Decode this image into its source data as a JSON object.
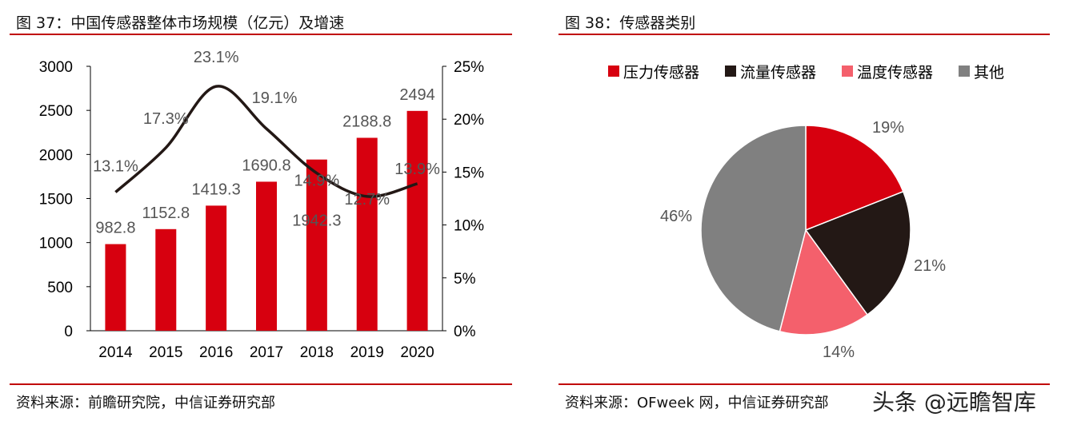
{
  "left": {
    "title": "图 37：中国传感器整体市场规模（亿元）及增速",
    "source": "资料来源：前瞻研究院，中信证券研究部"
  },
  "right": {
    "title": "图 38：传感器类别",
    "source": "资料来源：OFweek 网，中信证券研究部"
  },
  "watermark": "头条 @远瞻智库",
  "chart_data": [
    {
      "type": "bar+line",
      "categories": [
        "2014",
        "2015",
        "2016",
        "2017",
        "2018",
        "2019",
        "2020"
      ],
      "series": [
        {
          "type": "bar",
          "values": [
            982.8,
            1152.8,
            1419.3,
            1690.8,
            1942.3,
            2188.8,
            2494
          ],
          "labels": [
            "982.8",
            "1152.8",
            "1419.3",
            "1690.8",
            "1942.3",
            "2188.8",
            "2494"
          ],
          "color": "#d7000f",
          "axis": "left"
        },
        {
          "type": "line",
          "values": [
            13.1,
            17.3,
            23.1,
            19.1,
            14.9,
            12.7,
            13.9
          ],
          "labels": [
            "13.1%",
            "17.3%",
            "23.1%",
            "19.1%",
            "14.9%",
            "12.7%",
            "13.9%"
          ],
          "color": "#231815",
          "axis": "right"
        }
      ],
      "ylim": [
        0,
        3000
      ],
      "yticks": [
        "0",
        "500",
        "1000",
        "1500",
        "2000",
        "2500",
        "3000"
      ],
      "y2lim": [
        0,
        25
      ],
      "y2ticks": [
        "0%",
        "5%",
        "10%",
        "15%",
        "20%",
        "25%"
      ],
      "grid": false
    },
    {
      "type": "pie",
      "legend_position": "top",
      "slices": [
        {
          "name": "压力传感器",
          "value": 19,
          "label": "19%",
          "color": "#d7000f"
        },
        {
          "name": "流量传感器",
          "value": 21,
          "label": "21%",
          "color": "#231815"
        },
        {
          "name": "温度传感器",
          "value": 14,
          "label": "14%",
          "color": "#f4606c"
        },
        {
          "name": "其他",
          "value": 46,
          "label": "46%",
          "color": "#808080"
        }
      ]
    }
  ]
}
